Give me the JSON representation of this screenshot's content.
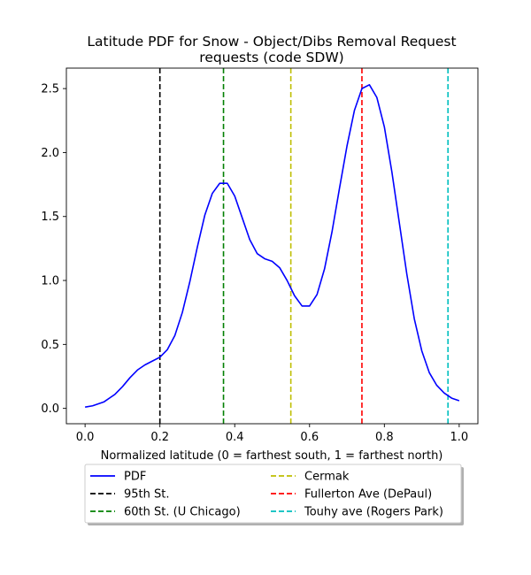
{
  "chart_data": {
    "type": "line",
    "title_line1": "Latitude PDF for Snow - Object/Dibs Removal Request",
    "title_line2": "requests (code SDW)",
    "xlabel": "Normalized latitude (0 = farthest south, 1 = farthest north)",
    "ylabel": "",
    "xlim": [
      -0.05,
      1.05
    ],
    "ylim": [
      -0.12,
      2.66
    ],
    "xticks": [
      0.0,
      0.2,
      0.4,
      0.6,
      0.8,
      1.0
    ],
    "xtick_labels": [
      "0.0",
      "0.2",
      "0.4",
      "0.6",
      "0.8",
      "1.0"
    ],
    "yticks": [
      0.0,
      0.5,
      1.0,
      1.5,
      2.0,
      2.5
    ],
    "ytick_labels": [
      "0.0",
      "0.5",
      "1.0",
      "1.5",
      "2.0",
      "2.5"
    ],
    "grid": false,
    "legend_position": "below plot, two columns, with shadow",
    "series": [
      {
        "name": "PDF",
        "color": "#0000ff",
        "style": "solid",
        "x": [
          0.0,
          0.02,
          0.05,
          0.08,
          0.1,
          0.12,
          0.14,
          0.16,
          0.18,
          0.2,
          0.22,
          0.24,
          0.26,
          0.28,
          0.3,
          0.32,
          0.34,
          0.36,
          0.38,
          0.4,
          0.42,
          0.44,
          0.46,
          0.48,
          0.5,
          0.52,
          0.54,
          0.56,
          0.58,
          0.6,
          0.62,
          0.64,
          0.66,
          0.68,
          0.7,
          0.72,
          0.74,
          0.76,
          0.78,
          0.8,
          0.82,
          0.84,
          0.86,
          0.88,
          0.9,
          0.92,
          0.94,
          0.96,
          0.98,
          1.0
        ],
        "y": [
          0.01,
          0.02,
          0.05,
          0.11,
          0.17,
          0.24,
          0.3,
          0.34,
          0.37,
          0.4,
          0.46,
          0.57,
          0.75,
          0.99,
          1.26,
          1.51,
          1.68,
          1.76,
          1.76,
          1.66,
          1.49,
          1.32,
          1.21,
          1.17,
          1.15,
          1.1,
          1.0,
          0.88,
          0.8,
          0.8,
          0.89,
          1.09,
          1.38,
          1.72,
          2.05,
          2.33,
          2.5,
          2.53,
          2.43,
          2.2,
          1.85,
          1.45,
          1.05,
          0.7,
          0.45,
          0.28,
          0.18,
          0.12,
          0.08,
          0.06
        ]
      },
      {
        "name": "95th St.",
        "color": "#000000",
        "style": "dashed",
        "vline_x": 0.2
      },
      {
        "name": "60th St. (U Chicago)",
        "color": "#008000",
        "style": "dashed",
        "vline_x": 0.37
      },
      {
        "name": "Cermak",
        "color": "#bfbf00",
        "style": "dashed",
        "vline_x": 0.55
      },
      {
        "name": "Fullerton Ave (DePaul)",
        "color": "#ff0000",
        "style": "dashed",
        "vline_x": 0.74
      },
      {
        "name": "Touhy ave (Rogers Park)",
        "color": "#00bfbf",
        "style": "dashed",
        "vline_x": 0.97
      }
    ]
  }
}
